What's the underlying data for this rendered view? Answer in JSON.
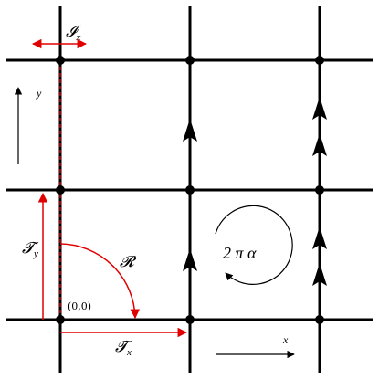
{
  "labels": {
    "origin": "(0,0)",
    "Ix": "𝓘",
    "Ix_sub": "x",
    "Tx": "𝓣",
    "Tx_sub": "x",
    "Ty": "𝓣",
    "Ty_sub": "y",
    "R": "𝓡",
    "flux": "2 π α",
    "axis_x": "x",
    "axis_y": "y"
  },
  "colors": {
    "lattice": "#000000",
    "highlight": "#e00000",
    "background": "#ffffff"
  }
}
